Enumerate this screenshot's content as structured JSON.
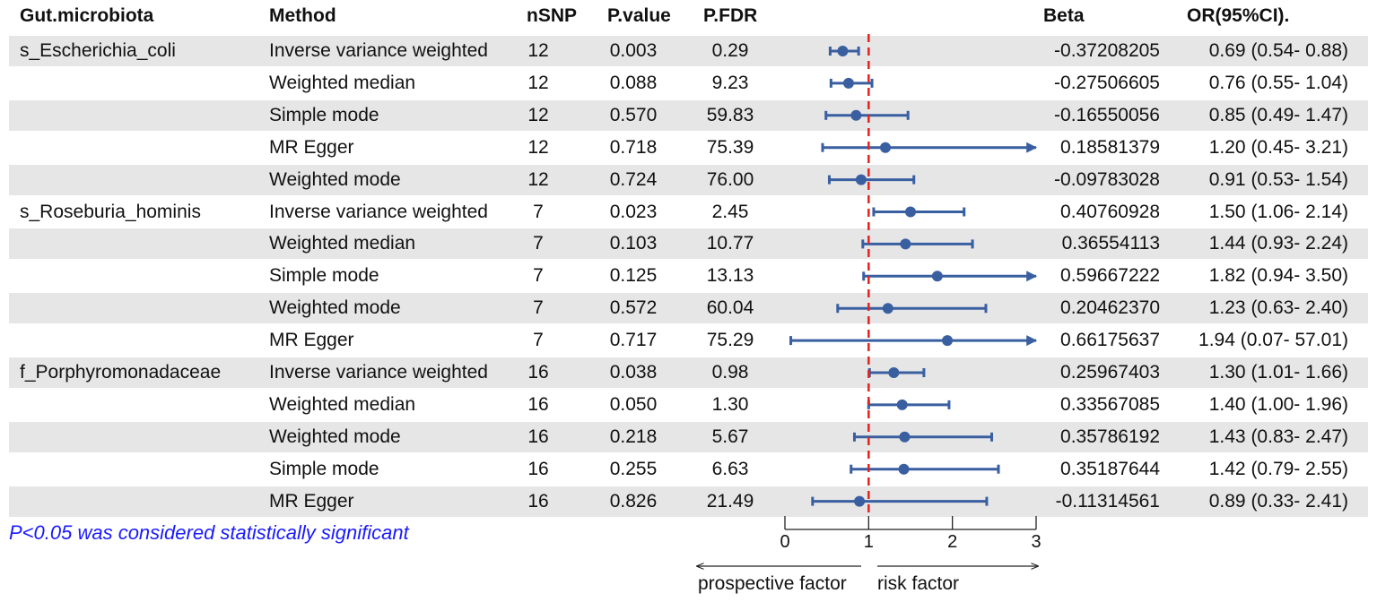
{
  "headers": {
    "group": "Gut.microbiota",
    "method": "Method",
    "nsnp": "nSNP",
    "pvalue": "P.value",
    "pfdr": "P.FDR",
    "beta": "Beta",
    "or": "OR(95%CI)."
  },
  "rows": [
    {
      "group": "s_Escherichia_coli",
      "method": "Inverse variance weighted",
      "nsnp": "12",
      "pvalue": "0.003",
      "pfdr": "0.29",
      "beta": "-0.37208205",
      "or": "0.69 (0.54-  0.88)"
    },
    {
      "group": "",
      "method": "Weighted median",
      "nsnp": "12",
      "pvalue": "0.088",
      "pfdr": "9.23",
      "beta": "-0.27506605",
      "or": "0.76 (0.55-  1.04)"
    },
    {
      "group": "",
      "method": "Simple mode",
      "nsnp": "12",
      "pvalue": "0.570",
      "pfdr": "59.83",
      "beta": "-0.16550056",
      "or": "0.85 (0.49-  1.47)"
    },
    {
      "group": "",
      "method": "MR Egger",
      "nsnp": "12",
      "pvalue": "0.718",
      "pfdr": "75.39",
      "beta": "0.18581379",
      "or": "1.20 (0.45-  3.21)"
    },
    {
      "group": "",
      "method": "Weighted mode",
      "nsnp": "12",
      "pvalue": "0.724",
      "pfdr": "76.00",
      "beta": "-0.09783028",
      "or": "0.91 (0.53-  1.54)"
    },
    {
      "group": "s_Roseburia_hominis",
      "method": "Inverse variance weighted",
      "nsnp": "7",
      "pvalue": "0.023",
      "pfdr": "2.45",
      "beta": "0.40760928",
      "or": "1.50 (1.06-  2.14)"
    },
    {
      "group": "",
      "method": "Weighted median",
      "nsnp": "7",
      "pvalue": "0.103",
      "pfdr": "10.77",
      "beta": "0.36554113",
      "or": "1.44 (0.93-  2.24)"
    },
    {
      "group": "",
      "method": "Simple mode",
      "nsnp": "7",
      "pvalue": "0.125",
      "pfdr": "13.13",
      "beta": "0.59667222",
      "or": "1.82 (0.94-  3.50)"
    },
    {
      "group": "",
      "method": "Weighted mode",
      "nsnp": "7",
      "pvalue": "0.572",
      "pfdr": "60.04",
      "beta": "0.20462370",
      "or": "1.23 (0.63-  2.40)"
    },
    {
      "group": "",
      "method": "MR Egger",
      "nsnp": "7",
      "pvalue": "0.717",
      "pfdr": "75.29",
      "beta": "0.66175637",
      "or": "1.94 (0.07- 57.01)"
    },
    {
      "group": "f_Porphyromonadaceae",
      "method": "Inverse variance weighted",
      "nsnp": "16",
      "pvalue": "0.038",
      "pfdr": "0.98",
      "beta": "0.25967403",
      "or": "1.30 (1.01-  1.66)"
    },
    {
      "group": "",
      "method": "Weighted median",
      "nsnp": "16",
      "pvalue": "0.050",
      "pfdr": "1.30",
      "beta": "0.33567085",
      "or": "1.40 (1.00-  1.96)"
    },
    {
      "group": "",
      "method": "Weighted mode",
      "nsnp": "16",
      "pvalue": "0.218",
      "pfdr": "5.67",
      "beta": "0.35786192",
      "or": "1.43 (0.83-  2.47)"
    },
    {
      "group": "",
      "method": "Simple mode",
      "nsnp": "16",
      "pvalue": "0.255",
      "pfdr": "6.63",
      "beta": "0.35187644",
      "or": "1.42 (0.79-  2.55)"
    },
    {
      "group": "",
      "method": "MR Egger",
      "nsnp": "16",
      "pvalue": "0.826",
      "pfdr": "21.49",
      "beta": "-0.11314561",
      "or": "0.89 (0.33-  2.41)"
    }
  ],
  "note": "P<0.05 was considered statistically significant",
  "colors": {
    "point": "#3a5fa0",
    "refline": "#e8201c",
    "band": "#e6e6e6",
    "note": "#1a1aff"
  },
  "chart_data": {
    "type": "forest",
    "x_ticks": [
      "0",
      "1",
      "2",
      "3"
    ],
    "xlim": [
      0,
      3
    ],
    "reference": 1,
    "left_label": "prospective factor",
    "right_label": "risk factor",
    "points": [
      {
        "or": 0.69,
        "lo": 0.54,
        "hi": 0.88
      },
      {
        "or": 0.76,
        "lo": 0.55,
        "hi": 1.04
      },
      {
        "or": 0.85,
        "lo": 0.49,
        "hi": 1.47
      },
      {
        "or": 1.2,
        "lo": 0.45,
        "hi": 3.21
      },
      {
        "or": 0.91,
        "lo": 0.53,
        "hi": 1.54
      },
      {
        "or": 1.5,
        "lo": 1.06,
        "hi": 2.14
      },
      {
        "or": 1.44,
        "lo": 0.93,
        "hi": 2.24
      },
      {
        "or": 1.82,
        "lo": 0.94,
        "hi": 3.5
      },
      {
        "or": 1.23,
        "lo": 0.63,
        "hi": 2.4
      },
      {
        "or": 1.94,
        "lo": 0.07,
        "hi": 57.01
      },
      {
        "or": 1.3,
        "lo": 1.01,
        "hi": 1.66
      },
      {
        "or": 1.4,
        "lo": 1.0,
        "hi": 1.96
      },
      {
        "or": 1.43,
        "lo": 0.83,
        "hi": 2.47
      },
      {
        "or": 1.42,
        "lo": 0.79,
        "hi": 2.55
      },
      {
        "or": 0.89,
        "lo": 0.33,
        "hi": 2.41
      }
    ]
  }
}
